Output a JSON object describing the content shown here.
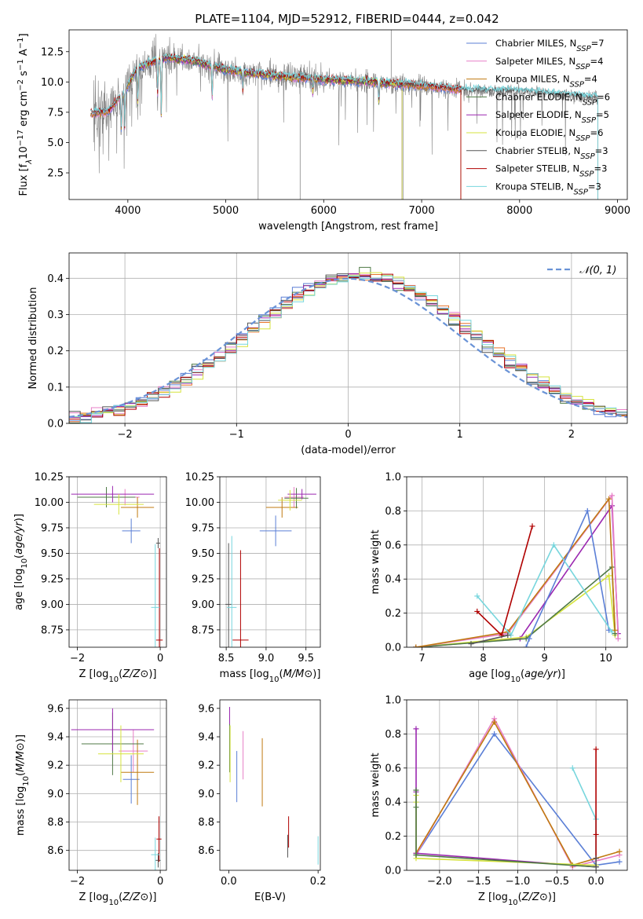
{
  "figure_title": "PLATE=1104, MJD=52912, FIBERID=0444, z=0.042",
  "colors": {
    "Chabrier MILES": "#5b7fd6",
    "Salpeter MILES": "#e77fc7",
    "Kroupa MILES": "#c07a10",
    "Chabrier ELODIE": "#4f7a46",
    "Salpeter ELODIE": "#9b27b0",
    "Kroupa ELODIE": "#d6e33c",
    "Chabrier STELIB": "#555555",
    "Salpeter STELIB": "#b00000",
    "Kroupa STELIB": "#77d6dd",
    "data": "#808080",
    "orange": "#e8742a",
    "normal": "#6a93d6"
  },
  "chart_data": [
    {
      "id": "spectrum",
      "type": "line",
      "xlabel": "wavelength [Angstrom, rest frame]",
      "ylabel_parts": {
        "pre": "Flux [f",
        "sub": "λ",
        "mid": "10",
        "sup1": "−17",
        "post": " erg cm",
        "sup2": "−2",
        "post2": " s",
        "sup3": "−1",
        "post3": " A",
        "sup4": "−1",
        "end": "]"
      },
      "xlim": [
        3400,
        9100
      ],
      "ylim": [
        0.3,
        14.3
      ],
      "xticks": [
        4000,
        5000,
        6000,
        7000,
        8000,
        9000
      ],
      "yticks": [
        2.5,
        5.0,
        7.5,
        10.0,
        12.5
      ],
      "ytick_labels": [
        "2.5",
        "5.0",
        "7.5",
        "10.0",
        "12.5"
      ],
      "grid": false,
      "legend_position": "upper-right",
      "legend": [
        {
          "name": "Chabrier MILES",
          "nssp": "7"
        },
        {
          "name": "Salpeter MILES",
          "nssp": "4"
        },
        {
          "name": "Kroupa MILES",
          "nssp": "4"
        },
        {
          "name": "Chabrier ELODIE",
          "nssp": "6"
        },
        {
          "name": "Salpeter ELODIE",
          "nssp": "5"
        },
        {
          "name": "Kroupa ELODIE",
          "nssp": "6"
        },
        {
          "name": "Chabrier STELIB",
          "nssp": "3"
        },
        {
          "name": "Salpeter STELIB",
          "nssp": "3"
        },
        {
          "name": "Kroupa STELIB",
          "nssp": "3"
        }
      ],
      "continuum": [
        [
          3650,
          7.4
        ],
        [
          3800,
          7.6
        ],
        [
          3950,
          9.0
        ],
        [
          4100,
          11.2
        ],
        [
          4400,
          12.0
        ],
        [
          4700,
          11.7
        ],
        [
          5000,
          11.0
        ],
        [
          5500,
          10.5
        ],
        [
          6000,
          10.2
        ],
        [
          6500,
          10.0
        ],
        [
          7000,
          9.7
        ],
        [
          7500,
          9.3
        ],
        [
          8000,
          9.2
        ],
        [
          8500,
          8.9
        ],
        [
          8800,
          8.7
        ]
      ],
      "absorption_lines": [
        [
          3934,
          5.8
        ],
        [
          3969,
          6.2
        ],
        [
          4102,
          8.0
        ],
        [
          4304,
          9.0
        ],
        [
          4341,
          7.2
        ],
        [
          4861,
          8.8
        ],
        [
          5175,
          9.2
        ],
        [
          5890,
          9.0
        ],
        [
          6563,
          8.2
        ]
      ],
      "model_ranges": [
        [
          3620,
          7400
        ],
        [
          3620,
          7400
        ],
        [
          3620,
          7400
        ],
        [
          4000,
          6800
        ],
        [
          4000,
          6800
        ],
        [
          4000,
          6800
        ],
        [
          3620,
          8800
        ],
        [
          3620,
          7400
        ],
        [
          3620,
          8800
        ]
      ],
      "spikes": [
        [
          5330,
          0.2
        ],
        [
          5760,
          0.3
        ],
        [
          6690,
          14.3
        ],
        [
          6810,
          0.3
        ],
        [
          7400,
          0.3
        ]
      ]
    },
    {
      "id": "residuals",
      "type": "step",
      "xlabel": "(data-model)/error",
      "ylabel": "Normed distribution",
      "xlim": [
        -2.5,
        2.5
      ],
      "ylim": [
        0,
        0.47
      ],
      "xticks": [
        -2,
        -1,
        0,
        1,
        2
      ],
      "xtick_labels": [
        "−2",
        "−1",
        "0",
        "1",
        "2"
      ],
      "yticks": [
        0.0,
        0.1,
        0.2,
        0.3,
        0.4
      ],
      "ytick_labels": [
        "0.0",
        "0.1",
        "0.2",
        "0.3",
        "0.4"
      ],
      "grid": true,
      "legend_position": "upper-right",
      "legend": [
        "𝒩(0, 1)"
      ],
      "bin_width": 0.1,
      "base_peak": 0.41
    },
    {
      "id": "age_vs_Z",
      "type": "errorbar",
      "xlabel": "Z [log10(Z/Z⊙)]",
      "ylabel": "age  [log10(age/yr)]",
      "xlim": [
        -2.2,
        0.15
      ],
      "ylim": [
        8.58,
        10.25
      ],
      "xticks": [
        -2,
        0
      ],
      "xtick_labels": [
        "−2",
        "0"
      ],
      "yticks": [
        8.75,
        9.0,
        9.25,
        9.5,
        9.75,
        10.0,
        10.25
      ],
      "ytick_labels": [
        "8.75",
        "9.00",
        "9.25",
        "9.50",
        "9.75",
        "10.00",
        "10.25"
      ],
      "grid": true,
      "points": [
        {
          "series": "Chabrier MILES",
          "x": -0.7,
          "xerr": 0.22,
          "y": 9.72,
          "yerr": 0.12
        },
        {
          "series": "Salpeter MILES",
          "x": -0.85,
          "xerr": 0.35,
          "y": 10.05,
          "yerr": 0.08
        },
        {
          "series": "Kroupa MILES",
          "x": -0.55,
          "xerr": 0.4,
          "y": 9.95,
          "yerr": 0.1
        },
        {
          "series": "Chabrier ELODIE",
          "x": -1.3,
          "xerr": 0.7,
          "y": 10.05,
          "yerr": 0.1
        },
        {
          "series": "Salpeter ELODIE",
          "x": -1.15,
          "xerr": 1.0,
          "y": 10.08,
          "yerr": 0.08
        },
        {
          "series": "Kroupa ELODIE",
          "x": -1.0,
          "xerr": 0.6,
          "y": 9.98,
          "yerr": 0.1
        },
        {
          "series": "Chabrier STELIB",
          "x": -0.05,
          "xerr": 0.05,
          "y": 9.6,
          "yerr": 0.05
        },
        {
          "series": "Salpeter STELIB",
          "x": -0.02,
          "xerr": 0.08,
          "y": 8.65,
          "yerr": 0.9
        },
        {
          "series": "Kroupa STELIB",
          "x": -0.12,
          "xerr": 0.1,
          "y": 8.97,
          "yerr": 0.62
        }
      ]
    },
    {
      "id": "age_vs_mass",
      "type": "errorbar",
      "xlabel": "mass [log10(M/M⊙)]",
      "ylabel": "",
      "xlim": [
        8.42,
        9.68
      ],
      "ylim": [
        8.58,
        10.25
      ],
      "xticks": [
        8.5,
        9.0,
        9.5
      ],
      "xtick_labels": [
        "8.5",
        "9.0",
        "9.5"
      ],
      "yticks": [
        8.75,
        9.0,
        9.25,
        9.5,
        9.75,
        10.0,
        10.25
      ],
      "ytick_labels": [
        "8.75",
        "9.00",
        "9.25",
        "9.50",
        "9.75",
        "10.00",
        "10.25"
      ],
      "grid": true,
      "points": [
        {
          "series": "Chabrier MILES",
          "x": 9.12,
          "xerr": 0.2,
          "y": 9.72,
          "yerr": 0.15
        },
        {
          "series": "Salpeter MILES",
          "x": 9.35,
          "xerr": 0.12,
          "y": 10.05,
          "yerr": 0.1
        },
        {
          "series": "Kroupa MILES",
          "x": 9.2,
          "xerr": 0.2,
          "y": 9.95,
          "yerr": 0.1
        },
        {
          "series": "Chabrier ELODIE",
          "x": 9.38,
          "xerr": 0.15,
          "y": 10.04,
          "yerr": 0.1
        },
        {
          "series": "Salpeter ELODIE",
          "x": 9.45,
          "xerr": 0.18,
          "y": 10.08,
          "yerr": 0.05
        },
        {
          "series": "Kroupa ELODIE",
          "x": 9.3,
          "xerr": 0.15,
          "y": 10.02,
          "yerr": 0.1
        },
        {
          "series": "Chabrier STELIB",
          "x": 8.53,
          "xerr": 0.04,
          "y": 9.0,
          "yerr": 0.6
        },
        {
          "series": "Salpeter STELIB",
          "x": 8.68,
          "xerr": 0.1,
          "y": 8.65,
          "yerr": 0.88
        },
        {
          "series": "Kroupa STELIB",
          "x": 8.57,
          "xerr": 0.06,
          "y": 8.97,
          "yerr": 0.7
        }
      ]
    },
    {
      "id": "weight_vs_age",
      "type": "line",
      "xlabel": "age  [log10(age/yr)]",
      "ylabel": "mass weight",
      "xlim": [
        6.75,
        10.35
      ],
      "ylim": [
        0,
        1.0
      ],
      "xticks": [
        7,
        8,
        9,
        10
      ],
      "xtick_labels": [
        "7",
        "8",
        "9",
        "10"
      ],
      "yticks": [
        0.0,
        0.2,
        0.4,
        0.6,
        0.8,
        1.0
      ],
      "ytick_labels": [
        "0.0",
        "0.2",
        "0.4",
        "0.6",
        "0.8",
        "1.0"
      ],
      "grid": true,
      "series": [
        {
          "name": "Salpeter ELODIE",
          "x": [
            6.9,
            8.6,
            10.1,
            10.2
          ],
          "y": [
            0.0,
            0.05,
            0.83,
            0.08
          ]
        },
        {
          "name": "Kroupa ELODIE",
          "x": [
            6.9,
            8.7,
            10.05,
            10.15
          ],
          "y": [
            0.0,
            0.06,
            0.42,
            0.07
          ]
        },
        {
          "name": "Chabrier ELODIE",
          "x": [
            6.9,
            8.7,
            10.1,
            10.15
          ],
          "y": [
            0.0,
            0.05,
            0.47,
            0.08
          ]
        },
        {
          "name": "Salpeter MILES",
          "x": [
            6.9,
            8.4,
            10.1,
            10.2
          ],
          "y": [
            0.0,
            0.08,
            0.89,
            0.05
          ]
        },
        {
          "name": "Kroupa MILES",
          "x": [
            6.9,
            8.4,
            10.05,
            10.15
          ],
          "y": [
            0.0,
            0.09,
            0.87,
            0.1
          ]
        },
        {
          "name": "Chabrier MILES",
          "x": [
            8.7,
            8.75,
            9.7,
            10.05
          ],
          "y": [
            0.0,
            0.05,
            0.8,
            0.1
          ]
        },
        {
          "name": "Kroupa STELIB",
          "x": [
            7.9,
            8.45,
            9.15,
            10.1
          ],
          "y": [
            0.3,
            0.07,
            0.6,
            0.09
          ]
        },
        {
          "name": "Salpeter STELIB",
          "x": [
            7.9,
            8.3,
            8.8
          ],
          "y": [
            0.21,
            0.07,
            0.71
          ]
        },
        {
          "name": "Chabrier STELIB",
          "x": [
            7.8,
            8.4
          ],
          "y": [
            0.02,
            0.07
          ]
        }
      ]
    },
    {
      "id": "mass_vs_Z",
      "type": "errorbar",
      "xlabel": "Z [log10(Z/Z⊙)]",
      "ylabel": "mass [log10(M/M⊙)]",
      "xlim": [
        -2.2,
        0.15
      ],
      "ylim": [
        8.46,
        9.66
      ],
      "xticks": [
        -2,
        0
      ],
      "xtick_labels": [
        "−2",
        "0"
      ],
      "yticks": [
        8.6,
        8.8,
        9.0,
        9.2,
        9.4,
        9.6
      ],
      "ytick_labels": [
        "8.6",
        "8.8",
        "9.0",
        "9.2",
        "9.4",
        "9.6"
      ],
      "grid": true,
      "points": [
        {
          "series": "Chabrier MILES",
          "x": -0.7,
          "xerr": 0.2,
          "y": 9.1,
          "yerr": 0.17
        },
        {
          "series": "Salpeter MILES",
          "x": -0.65,
          "xerr": 0.35,
          "y": 9.3,
          "yerr": 0.15
        },
        {
          "series": "Kroupa MILES",
          "x": -0.55,
          "xerr": 0.4,
          "y": 9.15,
          "yerr": 0.23
        },
        {
          "series": "Chabrier ELODIE",
          "x": -1.15,
          "xerr": 0.75,
          "y": 9.35,
          "yerr": 0.22
        },
        {
          "series": "Salpeter ELODIE",
          "x": -1.15,
          "xerr": 1.0,
          "y": 9.45,
          "yerr": 0.15
        },
        {
          "series": "Kroupa ELODIE",
          "x": -0.95,
          "xerr": 0.55,
          "y": 9.28,
          "yerr": 0.2
        },
        {
          "series": "Chabrier STELIB",
          "x": -0.05,
          "xerr": 0.06,
          "y": 8.53,
          "yerr": 0.05
        },
        {
          "series": "Salpeter STELIB",
          "x": -0.03,
          "xerr": 0.06,
          "y": 8.68,
          "yerr": 0.16
        },
        {
          "series": "Kroupa STELIB",
          "x": -0.12,
          "xerr": 0.1,
          "y": 8.57,
          "yerr": 0.12
        }
      ]
    },
    {
      "id": "mass_vs_ebv",
      "type": "errorbar",
      "xlabel": "E(B-V)",
      "ylabel": "",
      "xlim": [
        -0.02,
        0.205
      ],
      "ylim": [
        8.46,
        9.66
      ],
      "xticks": [
        0.0,
        0.2
      ],
      "xtick_labels": [
        "0.0",
        "0.2"
      ],
      "yticks": [
        8.6,
        8.8,
        9.0,
        9.2,
        9.4,
        9.6
      ],
      "ytick_labels": [
        "8.6",
        "8.8",
        "9.0",
        "9.2",
        "9.4",
        "9.6"
      ],
      "grid": false,
      "points": [
        {
          "series": "Chabrier MILES",
          "x": 0.018,
          "y": 9.12,
          "yerr": 0.18
        },
        {
          "series": "Salpeter MILES",
          "x": 0.032,
          "y": 9.27,
          "yerr": 0.17
        },
        {
          "series": "Kroupa MILES",
          "x": 0.075,
          "y": 9.15,
          "yerr": 0.24
        },
        {
          "series": "Chabrier ELODIE",
          "x": 0.002,
          "y": 9.35,
          "yerr": 0.2
        },
        {
          "series": "Salpeter ELODIE",
          "x": 0.002,
          "y": 9.55,
          "yerr": 0.06
        },
        {
          "series": "Kroupa ELODIE",
          "x": 0.003,
          "y": 9.28,
          "yerr": 0.2
        },
        {
          "series": "Chabrier STELIB",
          "x": 0.132,
          "y": 8.63,
          "yerr": 0.08
        },
        {
          "series": "Salpeter STELIB",
          "x": 0.134,
          "y": 8.73,
          "yerr": 0.11
        },
        {
          "series": "Kroupa STELIB",
          "x": 0.2,
          "y": 8.6,
          "yerr": 0.1
        }
      ]
    },
    {
      "id": "weight_vs_Z",
      "type": "line",
      "xlabel": "Z [log10(Z/Z⊙)]",
      "ylabel": "mass weight",
      "xlim": [
        -2.42,
        0.4
      ],
      "ylim": [
        0,
        1.0
      ],
      "xticks": [
        -2.0,
        -1.5,
        -1.0,
        -0.5,
        0.0
      ],
      "xtick_labels": [
        "−2.0",
        "−1.5",
        "−1.0",
        "−0.5",
        "0.0"
      ],
      "yticks": [
        0.0,
        0.2,
        0.4,
        0.6,
        0.8,
        1.0
      ],
      "ytick_labels": [
        "0.0",
        "0.2",
        "0.4",
        "0.6",
        "0.8",
        "1.0"
      ],
      "grid": true,
      "series": [
        {
          "name": "Chabrier MILES",
          "x": [
            -2.3,
            -1.3,
            0.0,
            0.3
          ],
          "y": [
            0.09,
            0.8,
            0.03,
            0.05
          ]
        },
        {
          "name": "Salpeter MILES",
          "x": [
            -2.3,
            -1.3,
            -0.3,
            0.3
          ],
          "y": [
            0.09,
            0.89,
            0.02,
            0.09
          ]
        },
        {
          "name": "Kroupa MILES",
          "x": [
            -2.3,
            -1.3,
            -0.3,
            0.3
          ],
          "y": [
            0.1,
            0.87,
            0.03,
            0.11
          ]
        },
        {
          "name": "Salpeter ELODIE",
          "x": [
            -2.3,
            -2.3,
            -2.3,
            0.0
          ],
          "y": [
            0.83,
            0.46,
            0.1,
            0.02
          ]
        },
        {
          "name": "Kroupa ELODIE",
          "x": [
            -2.3,
            -2.3,
            -2.3,
            0.0
          ],
          "y": [
            0.44,
            0.4,
            0.07,
            0.03
          ]
        },
        {
          "name": "Chabrier ELODIE",
          "x": [
            -2.3,
            -2.3,
            -2.3,
            0.0
          ],
          "y": [
            0.47,
            0.37,
            0.09,
            0.02
          ]
        },
        {
          "name": "Kroupa STELIB",
          "x": [
            -0.3,
            0.0,
            0.0
          ],
          "y": [
            0.6,
            0.3,
            0.07
          ]
        },
        {
          "name": "Salpeter STELIB",
          "x": [
            0.0,
            0.0,
            0.0
          ],
          "y": [
            0.71,
            0.21,
            0.07
          ]
        },
        {
          "name": "Chabrier STELIB",
          "x": [
            0.0,
            0.0
          ],
          "y": [
            0.07,
            0.02
          ]
        }
      ]
    }
  ]
}
